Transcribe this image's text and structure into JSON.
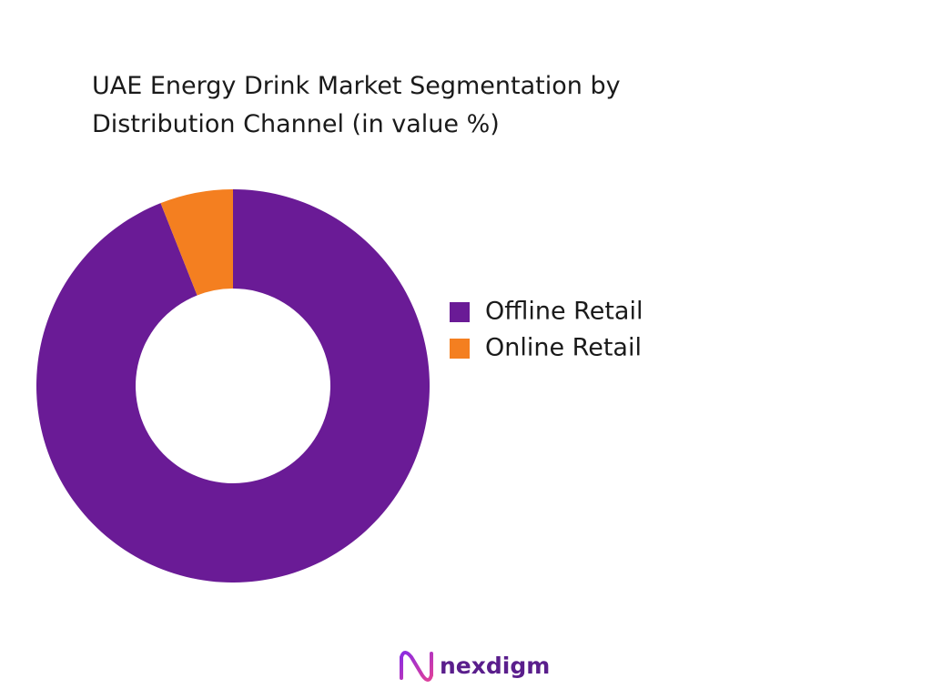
{
  "chart_data": {
    "type": "donut",
    "title": "UAE Energy Drink Market Segmentation by Distribution Channel (in value %)",
    "categories": [
      "Offline Retail",
      "Online Retail"
    ],
    "values": [
      94,
      6
    ],
    "colors": [
      "#6a1b96",
      "#f47f20"
    ]
  },
  "logo_text": "nexdigm"
}
